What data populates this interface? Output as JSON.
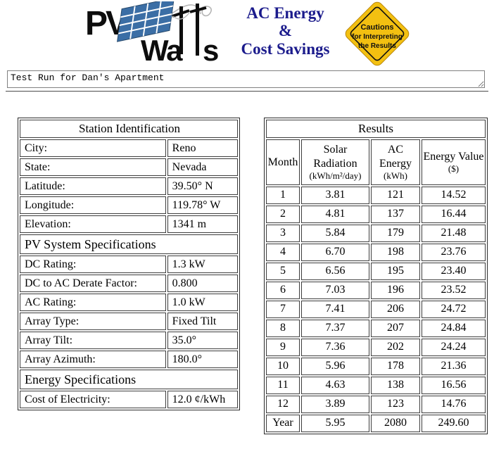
{
  "header": {
    "logo": {
      "name": "PVWatts",
      "text_pv": "PV",
      "text_wa": "Wa",
      "text_s": "s",
      "panel_color": "#3b6ea5"
    },
    "title_lines": [
      "AC Energy",
      "&",
      "Cost Savings"
    ],
    "title_color": "#1b1b8c",
    "caution_sign": {
      "lines": [
        "Cautions",
        "for Interpreting",
        "the Results"
      ],
      "bg_color": "#f3c011",
      "outline_color": "#111111"
    }
  },
  "note_input": {
    "value": "Test Run for Dan's Apartment"
  },
  "station_table": {
    "title": "Station Identification",
    "rows": [
      {
        "label": "City:",
        "value": "Reno"
      },
      {
        "label": "State:",
        "value": "Nevada"
      },
      {
        "label": "Latitude:",
        "value": "39.50° N"
      },
      {
        "label": "Longitude:",
        "value": "119.78° W"
      },
      {
        "label": "Elevation:",
        "value": "1341 m"
      },
      {
        "section": "PV System Specifications"
      },
      {
        "label": "DC Rating:",
        "value": "1.3 kW"
      },
      {
        "label": "DC to AC Derate Factor:",
        "value": "0.800"
      },
      {
        "label": "AC Rating:",
        "value": "1.0 kW"
      },
      {
        "label": "Array Type:",
        "value": "Fixed Tilt"
      },
      {
        "label": "Array Tilt:",
        "value": "35.0°"
      },
      {
        "label": "Array Azimuth:",
        "value": "180.0°"
      },
      {
        "section": "Energy Specifications"
      },
      {
        "label": "Cost of Electricity:",
        "value": "12.0 ¢/kWh"
      }
    ]
  },
  "results_table": {
    "title": "Results",
    "columns": [
      {
        "label": "Month",
        "unit": ""
      },
      {
        "label": "Solar Radiation",
        "unit": "(kWh/m²/day)"
      },
      {
        "label": "AC Energy",
        "unit": "(kWh)"
      },
      {
        "label": "Energy Value",
        "unit": "($)"
      }
    ],
    "rows": [
      {
        "month": "1",
        "solar": "3.81",
        "ac": "121",
        "value": "14.52"
      },
      {
        "month": "2",
        "solar": "4.81",
        "ac": "137",
        "value": "16.44"
      },
      {
        "month": "3",
        "solar": "5.84",
        "ac": "179",
        "value": "21.48"
      },
      {
        "month": "4",
        "solar": "6.70",
        "ac": "198",
        "value": "23.76"
      },
      {
        "month": "5",
        "solar": "6.56",
        "ac": "195",
        "value": "23.40"
      },
      {
        "month": "6",
        "solar": "7.03",
        "ac": "196",
        "value": "23.52"
      },
      {
        "month": "7",
        "solar": "7.41",
        "ac": "206",
        "value": "24.72"
      },
      {
        "month": "8",
        "solar": "7.37",
        "ac": "207",
        "value": "24.84"
      },
      {
        "month": "9",
        "solar": "7.36",
        "ac": "202",
        "value": "24.24"
      },
      {
        "month": "10",
        "solar": "5.96",
        "ac": "178",
        "value": "21.36"
      },
      {
        "month": "11",
        "solar": "4.63",
        "ac": "138",
        "value": "16.56"
      },
      {
        "month": "12",
        "solar": "3.89",
        "ac": "123",
        "value": "14.76"
      }
    ],
    "year_row": {
      "month": "Year",
      "solar": "5.95",
      "ac": "2080",
      "value": "249.60"
    }
  }
}
